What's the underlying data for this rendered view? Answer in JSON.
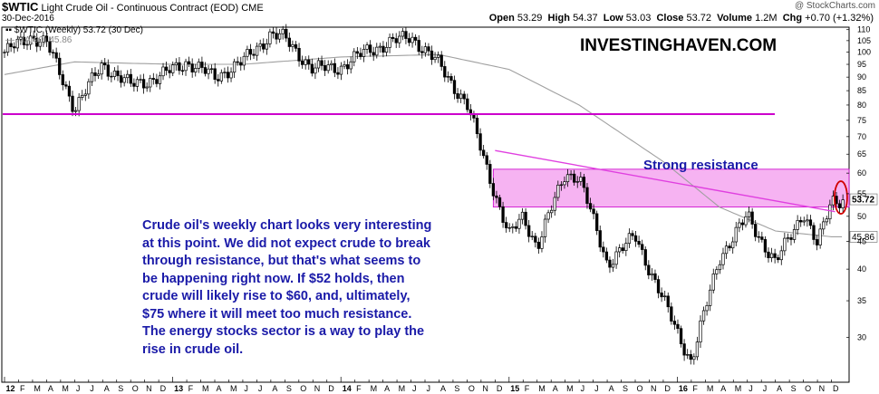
{
  "header": {
    "symbol": "$WTIC",
    "name": "Light Crude Oil - Continuous Contract (EOD)",
    "exchange": "CME",
    "date": "30-Dec-2016",
    "watermark": "@ StockCharts.com"
  },
  "ohlc": {
    "open_label": "Open",
    "open": "53.29",
    "high_label": "High",
    "high": "54.37",
    "low_label": "Low",
    "low": "53.03",
    "close_label": "Close",
    "close": "53.72",
    "volume_label": "Volume",
    "volume": "1.2M",
    "chg_label": "Chg",
    "chg": "+0.70 (+1.32%)"
  },
  "legend": {
    "series": "$WTIC (Weekly) 53.72 (30 Dec)",
    "ma": "MA(90) 45.86"
  },
  "annotations": {
    "brand": "INVESTINGHAVEN.COM",
    "resistance": "Strong resistance",
    "commentary": "Crude oil's weekly chart looks very interesting at this point. We did not expect crude to break through resistance, but that's what seems to be happening right now. If $52 holds, then crude will likely rise to $60, and, ultimately, $75 where it will meet too much resistance. The energy stocks sector is a way to play the rise in crude oil."
  },
  "colors": {
    "candle": "#000000",
    "ma_line": "#a0a0a0",
    "horizontal_line": "#cc00cc",
    "zone_fill": "#f4a6f0",
    "trendline": "#e040e0",
    "highlight_ellipse": "#d00000",
    "commentary_text": "#1a1aa8"
  },
  "chart_data": {
    "type": "candlestick",
    "title": "$WTIC Light Crude Oil - Continuous Contract (EOD)",
    "interval": "weekly",
    "log_scale": true,
    "ylim": [
      25,
      112
    ],
    "y_ticks": [
      110,
      105,
      100,
      95,
      90,
      85,
      80,
      75,
      70,
      65,
      60,
      55,
      50,
      45,
      40,
      35,
      30
    ],
    "x_ticks": [
      "12",
      "F",
      "M",
      "A",
      "M",
      "J",
      "J",
      "A",
      "S",
      "O",
      "N",
      "D",
      "13",
      "F",
      "M",
      "A",
      "M",
      "J",
      "J",
      "A",
      "S",
      "O",
      "N",
      "D",
      "14",
      "F",
      "M",
      "A",
      "M",
      "J",
      "J",
      "A",
      "S",
      "O",
      "N",
      "D",
      "15",
      "F",
      "M",
      "A",
      "M",
      "J",
      "J",
      "A",
      "S",
      "O",
      "N",
      "D",
      "16",
      "F",
      "M",
      "A",
      "M",
      "J",
      "J",
      "A",
      "S",
      "O",
      "N",
      "D"
    ],
    "x_range": [
      "2012-01",
      "2016-12"
    ],
    "path_points": [
      [
        "2012-01",
        100
      ],
      [
        "2012-03",
        107
      ],
      [
        "2012-04",
        104
      ],
      [
        "2012-06",
        79
      ],
      [
        "2012-08",
        95
      ],
      [
        "2012-10",
        87
      ],
      [
        "2012-12",
        90
      ],
      [
        "2013-02",
        96
      ],
      [
        "2013-04",
        90
      ],
      [
        "2013-06",
        96
      ],
      [
        "2013-08",
        108
      ],
      [
        "2013-09",
        106
      ],
      [
        "2013-11",
        93
      ],
      [
        "2014-01",
        94
      ],
      [
        "2014-03",
        101
      ],
      [
        "2014-06",
        107
      ],
      [
        "2014-08",
        95
      ],
      [
        "2014-10",
        80
      ],
      [
        "2014-12",
        55
      ],
      [
        "2015-01",
        46
      ],
      [
        "2015-02",
        50
      ],
      [
        "2015-03",
        44
      ],
      [
        "2015-05",
        60
      ],
      [
        "2015-06",
        59
      ],
      [
        "2015-08",
        41
      ],
      [
        "2015-10",
        46
      ],
      [
        "2015-12",
        35
      ],
      [
        "2016-02",
        27
      ],
      [
        "2016-04",
        42
      ],
      [
        "2016-06",
        50
      ],
      [
        "2016-08",
        41
      ],
      [
        "2016-10",
        51
      ],
      [
        "2016-11",
        44
      ],
      [
        "2016-12",
        53.72
      ]
    ],
    "ma90_points": [
      [
        "2012-01",
        91
      ],
      [
        "2012-06",
        96
      ],
      [
        "2013-01",
        95
      ],
      [
        "2013-06",
        95
      ],
      [
        "2014-01",
        98
      ],
      [
        "2014-08",
        99
      ],
      [
        "2015-01",
        93
      ],
      [
        "2015-06",
        80
      ],
      [
        "2015-12",
        63
      ],
      [
        "2016-04",
        52
      ],
      [
        "2016-08",
        47
      ],
      [
        "2016-12",
        45.86
      ]
    ],
    "annotations": {
      "horizontal_line_level": 77,
      "resistance_zone": [
        52,
        61
      ],
      "trendline": [
        [
          "2014-12",
          66
        ],
        [
          "2016-12",
          51
        ]
      ],
      "last_close": 53.72,
      "ma_last": 45.86
    }
  }
}
